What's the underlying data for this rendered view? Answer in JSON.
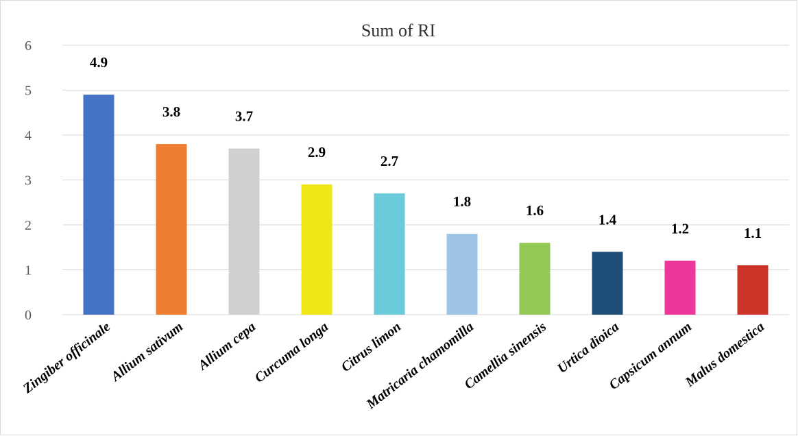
{
  "chart_data": {
    "type": "bar",
    "title": "Sum of RI",
    "xlabel": "",
    "ylabel": "",
    "ylim": [
      0,
      6
    ],
    "yticks": [
      0,
      1,
      2,
      3,
      4,
      5,
      6
    ],
    "grid": true,
    "legend": "none",
    "categories": [
      "Zingiber officinale",
      "Allium sativum",
      "Allium cepa",
      "Curcuma longa",
      "Citrus limon",
      "Matricaria chamomilla",
      "Camellia sinensis",
      "Urtica dioica",
      "Capsicum annum",
      "Malus domestica"
    ],
    "values": [
      4.9,
      3.8,
      3.7,
      2.9,
      2.7,
      1.8,
      1.6,
      1.4,
      1.2,
      1.1
    ],
    "data_labels": [
      "4.9",
      "3.8",
      "3.7",
      "2.9",
      "2.7",
      "1.8",
      "1.6",
      "1.4",
      "1.2",
      "1.1"
    ],
    "colors": [
      "#4472C4",
      "#ED7D31",
      "#D0D0D0",
      "#F0E816",
      "#6BCBDB",
      "#9DC3E6",
      "#92C853",
      "#1F4E79",
      "#EC3699",
      "#CC3329"
    ]
  }
}
